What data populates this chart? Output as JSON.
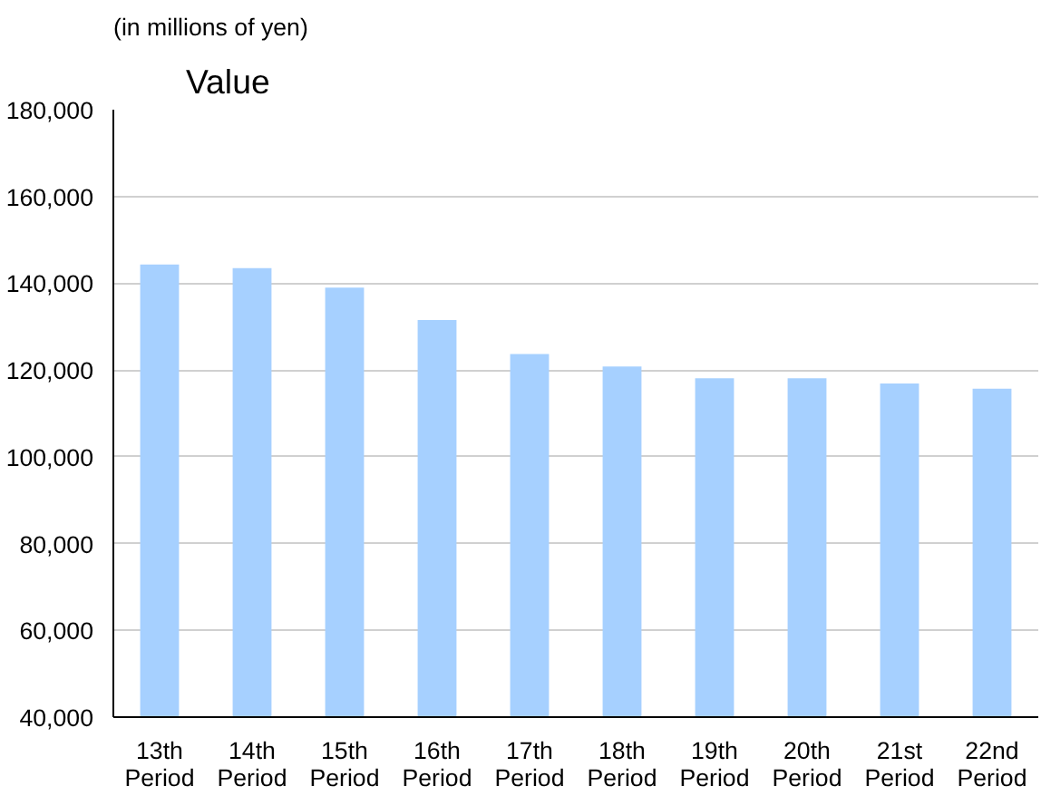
{
  "chart_data": {
    "type": "bar",
    "title": "Value",
    "ylabel": "(in millions of yen)",
    "categories": [
      "13th\nPeriod",
      "14th\nPeriod",
      "15th\nPeriod",
      "16th\nPeriod",
      "17th\nPeriod",
      "18th\nPeriod",
      "19th\nPeriod",
      "20th\nPeriod",
      "21st\nPeriod",
      "22nd\nPeriod"
    ],
    "values": [
      144300,
      143500,
      139000,
      131500,
      123700,
      120800,
      118100,
      118100,
      116900,
      115700
    ],
    "color": "#a6d0ff",
    "ylim": [
      40000,
      180000
    ],
    "yticks": [
      {
        "value": 40000,
        "label": "40,000"
      },
      {
        "value": 60000,
        "label": "60,000"
      },
      {
        "value": 80000,
        "label": "80,000"
      },
      {
        "value": 100000,
        "label": "100,000"
      },
      {
        "value": 120000,
        "label": "120,000"
      },
      {
        "value": 140000,
        "label": "140,000"
      },
      {
        "value": 160000,
        "label": "160,000"
      },
      {
        "value": 180000,
        "label": "180,000"
      }
    ],
    "grid": "y"
  }
}
